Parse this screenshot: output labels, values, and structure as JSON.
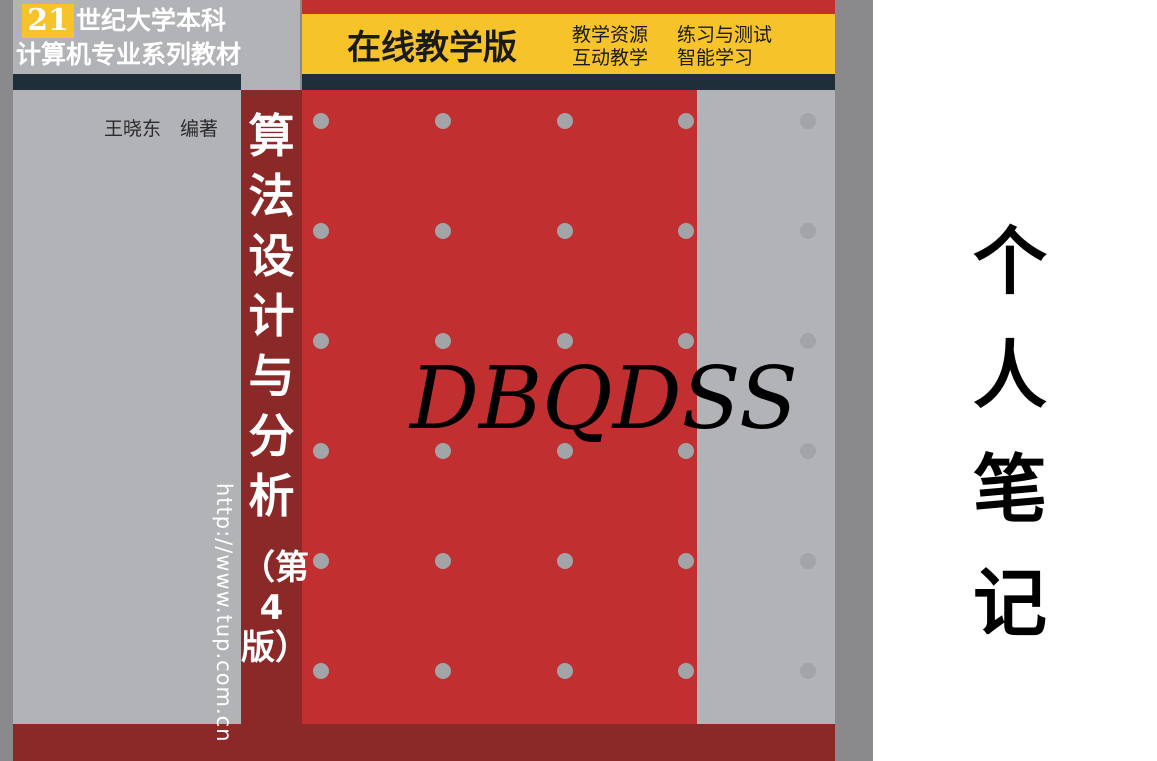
{
  "cover": {
    "series_number": "21",
    "series_line1": "世纪大学本科",
    "series_line2": "计算机专业系列教材",
    "edition_type": "在线教学版",
    "features": [
      "教学资源",
      "练习与测试",
      "互动教学",
      "智能学习"
    ],
    "author": "王晓东　编著",
    "title": "算法设计与分析",
    "edition": "（第4版）",
    "url": "http://www.tup.com.cn"
  },
  "watermark": "DBQDSS",
  "side_note": "个人笔记",
  "colors": {
    "red": "#c12f30",
    "dark_red": "#8b2929",
    "yellow": "#f7c32b",
    "gray": "#b2b3b6",
    "navy": "#1f2f3a"
  }
}
